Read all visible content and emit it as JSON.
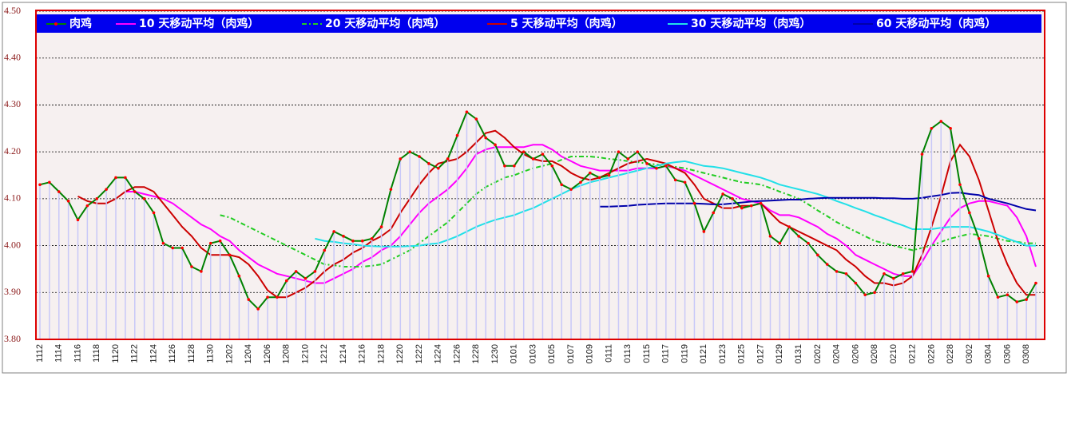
{
  "chart_data": {
    "type": "line",
    "categories": [
      "1112",
      null,
      "1114",
      null,
      "1116",
      null,
      "1118",
      null,
      "1120",
      null,
      "1122",
      null,
      "1124",
      null,
      "1126",
      null,
      "1128",
      null,
      "1130",
      null,
      "1202",
      null,
      "1204",
      null,
      "1206",
      null,
      "1208",
      null,
      "1210",
      null,
      "1212",
      null,
      "1214",
      null,
      "1216",
      null,
      "1218",
      null,
      "1220",
      null,
      "1222",
      null,
      "1224",
      null,
      "1226",
      null,
      "1228",
      null,
      "1230",
      null,
      "0101",
      null,
      "0103",
      null,
      "0105",
      null,
      "0107",
      null,
      "0109",
      null,
      "0111",
      null,
      "0113",
      null,
      "0115",
      null,
      "0117",
      null,
      "0119",
      null,
      "0121",
      null,
      "0123",
      null,
      "0125",
      null,
      "0127",
      null,
      "0129",
      null,
      "0131",
      null,
      "0202",
      null,
      "0204",
      null,
      "0206",
      null,
      "0208",
      null,
      "0210",
      null,
      "0212",
      null,
      "0226",
      null,
      "0228",
      null,
      "0302",
      null,
      "0304",
      null,
      "0306",
      null,
      "0308",
      null
    ],
    "series": [
      {
        "name": "肉鸡",
        "color": "#008000",
        "marker_color": "#ff0000",
        "bar_color": "#c8c8f8",
        "line_style": "solid",
        "values": [
          4.13,
          4.135,
          4.115,
          4.095,
          4.055,
          4.085,
          4.1,
          4.12,
          4.145,
          4.145,
          4.115,
          4.1,
          4.07,
          4.005,
          3.995,
          3.995,
          3.955,
          3.945,
          4.005,
          4.01,
          3.98,
          3.935,
          3.885,
          3.865,
          3.89,
          3.89,
          3.925,
          3.945,
          3.93,
          3.945,
          3.99,
          4.03,
          4.02,
          4.01,
          4.01,
          4.015,
          4.04,
          4.12,
          4.185,
          4.2,
          4.19,
          4.175,
          4.165,
          4.185,
          4.235,
          4.285,
          4.27,
          4.23,
          4.215,
          4.17,
          4.17,
          4.2,
          4.185,
          4.195,
          4.17,
          4.13,
          4.12,
          4.135,
          4.155,
          4.145,
          4.15,
          4.2,
          4.185,
          4.2,
          4.175,
          4.165,
          4.17,
          4.14,
          4.135,
          4.09,
          4.03,
          4.07,
          4.11,
          4.1,
          4.08,
          4.085,
          4.09,
          4.02,
          4.005,
          4.04,
          4.02,
          4.005,
          3.98,
          3.96,
          3.945,
          3.94,
          3.92,
          3.895,
          3.9,
          3.94,
          3.93,
          3.94,
          3.945,
          4.195,
          4.25,
          4.265,
          4.25,
          4.13,
          4.07,
          4.015,
          3.935,
          3.89,
          3.895,
          3.88,
          3.885,
          3.92
        ]
      },
      {
        "name": "10 天移动平均（肉鸡）",
        "color": "#ff00ff",
        "line_style": "solid",
        "values": [
          null,
          null,
          null,
          null,
          null,
          null,
          null,
          null,
          null,
          4.115,
          4.115,
          4.11,
          4.105,
          4.1,
          4.09,
          4.075,
          4.06,
          4.045,
          4.035,
          4.02,
          4.01,
          3.99,
          3.975,
          3.96,
          3.95,
          3.94,
          3.935,
          3.93,
          3.925,
          3.92,
          3.92,
          3.93,
          3.94,
          3.95,
          3.965,
          3.975,
          3.99,
          4.0,
          4.02,
          4.045,
          4.07,
          4.09,
          4.105,
          4.12,
          4.14,
          4.165,
          4.195,
          4.205,
          4.21,
          4.21,
          4.21,
          4.21,
          4.215,
          4.215,
          4.205,
          4.19,
          4.18,
          4.17,
          4.165,
          4.16,
          4.16,
          4.16,
          4.16,
          4.165,
          4.165,
          4.165,
          4.17,
          4.165,
          4.16,
          4.15,
          4.14,
          4.13,
          4.12,
          4.11,
          4.1,
          4.095,
          4.09,
          4.075,
          4.065,
          4.065,
          4.06,
          4.05,
          4.04,
          4.025,
          4.015,
          4.0,
          3.98,
          3.97,
          3.96,
          3.95,
          3.94,
          3.935,
          3.935,
          3.965,
          4.0,
          4.03,
          4.06,
          4.08,
          4.09,
          4.095,
          4.095,
          4.09,
          4.085,
          4.06,
          4.02,
          3.955
        ]
      },
      {
        "name": "20 天移动平均（肉鸡）",
        "color": "#22cc22",
        "line_style": "dashed",
        "values": [
          null,
          null,
          null,
          null,
          null,
          null,
          null,
          null,
          null,
          null,
          null,
          null,
          null,
          null,
          null,
          null,
          null,
          null,
          null,
          4.065,
          4.06,
          4.05,
          4.04,
          4.03,
          4.02,
          4.01,
          4.0,
          3.99,
          3.98,
          3.97,
          3.96,
          3.958,
          3.955,
          3.955,
          3.955,
          3.957,
          3.96,
          3.97,
          3.98,
          3.99,
          4.005,
          4.02,
          4.035,
          4.05,
          4.07,
          4.09,
          4.11,
          4.125,
          4.135,
          4.145,
          4.15,
          4.158,
          4.165,
          4.17,
          4.175,
          4.183,
          4.19,
          4.19,
          4.19,
          4.188,
          4.185,
          4.183,
          4.18,
          4.178,
          4.175,
          4.173,
          4.17,
          4.168,
          4.165,
          4.16,
          4.155,
          4.15,
          4.145,
          4.14,
          4.135,
          4.133,
          4.13,
          4.123,
          4.115,
          4.108,
          4.1,
          4.088,
          4.075,
          4.063,
          4.05,
          4.04,
          4.03,
          4.02,
          4.01,
          4.005,
          4.0,
          3.995,
          3.99,
          3.995,
          4.0,
          4.008,
          4.015,
          4.02,
          4.025,
          4.023,
          4.02,
          4.015,
          4.01,
          4.008,
          4.005,
          4.005
        ]
      },
      {
        "name": "5 天移动平均（肉鸡）",
        "color": "#cc0000",
        "line_style": "solid",
        "values": [
          null,
          null,
          null,
          null,
          4.105,
          4.095,
          4.09,
          4.09,
          4.1,
          4.115,
          4.125,
          4.125,
          4.115,
          4.09,
          4.065,
          4.04,
          4.02,
          3.995,
          3.98,
          3.98,
          3.98,
          3.975,
          3.96,
          3.935,
          3.905,
          3.89,
          3.89,
          3.9,
          3.91,
          3.925,
          3.945,
          3.96,
          3.97,
          3.985,
          3.995,
          4.01,
          4.02,
          4.035,
          4.07,
          4.1,
          4.13,
          4.155,
          4.175,
          4.18,
          4.185,
          4.2,
          4.22,
          4.24,
          4.245,
          4.23,
          4.21,
          4.195,
          4.185,
          4.18,
          4.18,
          4.17,
          4.155,
          4.145,
          4.14,
          4.145,
          4.155,
          4.165,
          4.175,
          4.18,
          4.185,
          4.18,
          4.175,
          4.165,
          4.155,
          4.13,
          4.1,
          4.09,
          4.08,
          4.08,
          4.085,
          4.085,
          4.09,
          4.07,
          4.05,
          4.04,
          4.03,
          4.02,
          4.01,
          4.0,
          3.99,
          3.97,
          3.955,
          3.935,
          3.92,
          3.92,
          3.915,
          3.92,
          3.935,
          3.98,
          4.04,
          4.105,
          4.18,
          4.215,
          4.19,
          4.14,
          4.075,
          4.01,
          3.96,
          3.92,
          3.895,
          3.895
        ]
      },
      {
        "name": "30 天移动平均（肉鸡）",
        "color": "#22e0e8",
        "line_style": "solid",
        "values": [
          null,
          null,
          null,
          null,
          null,
          null,
          null,
          null,
          null,
          null,
          null,
          null,
          null,
          null,
          null,
          null,
          null,
          null,
          null,
          null,
          null,
          null,
          null,
          null,
          null,
          null,
          null,
          null,
          null,
          4.015,
          4.01,
          4.008,
          4.005,
          4.003,
          4.0,
          3.999,
          3.998,
          3.998,
          3.998,
          3.999,
          4.0,
          4.003,
          4.005,
          4.012,
          4.02,
          4.03,
          4.04,
          4.048,
          4.055,
          4.06,
          4.065,
          4.073,
          4.08,
          4.09,
          4.1,
          4.11,
          4.12,
          4.128,
          4.135,
          4.14,
          4.145,
          4.15,
          4.155,
          4.16,
          4.165,
          4.17,
          4.175,
          4.178,
          4.18,
          4.175,
          4.17,
          4.168,
          4.165,
          4.16,
          4.155,
          4.15,
          4.145,
          4.138,
          4.13,
          4.125,
          4.12,
          4.115,
          4.11,
          4.103,
          4.095,
          4.088,
          4.08,
          4.073,
          4.065,
          4.058,
          4.05,
          4.043,
          4.035,
          4.035,
          4.035,
          4.038,
          4.04,
          4.04,
          4.04,
          4.035,
          4.03,
          4.023,
          4.015,
          4.008,
          4.0,
          4.0
        ]
      },
      {
        "name": "60 天移动平均（肉鸡）",
        "color": "#0000aa",
        "line_style": "solid",
        "values": [
          null,
          null,
          null,
          null,
          null,
          null,
          null,
          null,
          null,
          null,
          null,
          null,
          null,
          null,
          null,
          null,
          null,
          null,
          null,
          null,
          null,
          null,
          null,
          null,
          null,
          null,
          null,
          null,
          null,
          null,
          null,
          null,
          null,
          null,
          null,
          null,
          null,
          null,
          null,
          null,
          null,
          null,
          null,
          null,
          null,
          null,
          null,
          null,
          null,
          null,
          null,
          null,
          null,
          null,
          null,
          null,
          null,
          null,
          null,
          4.083,
          4.083,
          4.084,
          4.085,
          4.087,
          4.088,
          4.089,
          4.09,
          4.09,
          4.09,
          4.09,
          4.089,
          4.088,
          4.088,
          4.09,
          4.092,
          4.094,
          4.095,
          4.096,
          4.097,
          4.098,
          4.098,
          4.1,
          4.101,
          4.102,
          4.102,
          4.102,
          4.102,
          4.102,
          4.102,
          4.101,
          4.101,
          4.1,
          4.1,
          4.102,
          4.105,
          4.108,
          4.112,
          4.113,
          4.11,
          4.108,
          4.1,
          4.095,
          4.09,
          4.084,
          4.078,
          4.075
        ]
      }
    ],
    "ylim": [
      3.8,
      4.5
    ],
    "yticks": [
      {
        "value": 3.8,
        "label": "3.80"
      },
      {
        "value": 3.9,
        "label": "3.90"
      },
      {
        "value": 4.0,
        "label": "4.00"
      },
      {
        "value": 4.1,
        "label": "4.10"
      },
      {
        "value": 4.2,
        "label": "4.20"
      },
      {
        "value": 4.3,
        "label": "4.30"
      },
      {
        "value": 4.4,
        "label": "4.40"
      },
      {
        "value": 4.5,
        "label": "4.50"
      }
    ],
    "grid": true,
    "legend": "top"
  }
}
